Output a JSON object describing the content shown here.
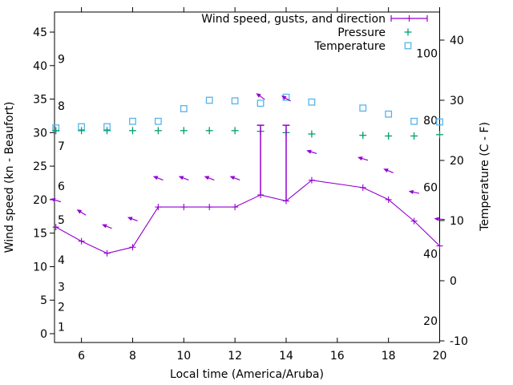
{
  "colors": {
    "wind": "#9400d3",
    "pressure": "#009e73",
    "temperature": "#56b4e9",
    "axis": "#000000",
    "background": "#ffffff"
  },
  "axes": {
    "x_title": "Local time (America/Aruba)",
    "left_title": "Wind speed (kn - Beaufort)",
    "right_title": "Temperature (C - F)",
    "x_tick_hours": [
      6,
      8,
      10,
      12,
      14,
      16,
      18,
      20
    ],
    "x_tick_labels": [
      "6",
      "8",
      "10",
      "12",
      "14",
      "16",
      "18",
      "20"
    ],
    "left_tick_kn": [
      0,
      5,
      10,
      15,
      20,
      25,
      30,
      35,
      40,
      45
    ],
    "left_tick_labels": [
      "0",
      "5",
      "10",
      "15",
      "20",
      "25",
      "30",
      "35",
      "40",
      "45"
    ],
    "beaufort_inner_labels": [
      {
        "label": "1",
        "kn": 1
      },
      {
        "label": "2",
        "kn": 4
      },
      {
        "label": "3",
        "kn": 7
      },
      {
        "label": "4",
        "kn": 11
      },
      {
        "label": "5",
        "kn": 17
      },
      {
        "label": "6",
        "kn": 22
      },
      {
        "label": "7",
        "kn": 28
      },
      {
        "label": "8",
        "kn": 34
      },
      {
        "label": "9",
        "kn": 41
      }
    ],
    "right_tick_c": [
      -10,
      0,
      10,
      20,
      30,
      40
    ],
    "right_tick_labels": [
      "-10",
      "0",
      "10",
      "20",
      "30",
      "40"
    ],
    "fahrenheit_inner_labels": [
      "20",
      "40",
      "60",
      "80",
      "100"
    ],
    "fahrenheit_inner_values": [
      20,
      40,
      60,
      80,
      100
    ]
  },
  "legend": [
    {
      "label": "Wind speed, gusts, and direction",
      "marker": "errorbar-line",
      "color": "#9400d3"
    },
    {
      "label": "Pressure",
      "marker": "plus",
      "color": "#009e73"
    },
    {
      "label": "Temperature",
      "marker": "open-square",
      "color": "#56b4e9"
    }
  ],
  "chart_data": {
    "type": "line",
    "title": "",
    "xlabel": "Local time (America/Aruba)",
    "ylabel_left": "Wind speed (kn - Beaufort)",
    "ylabel_right": "Temperature (C - F)",
    "x_range_hours": [
      4.95,
      20.2
    ],
    "left_axis_kn_range": [
      -1.3,
      48.1
    ],
    "right_axis_c_range": [
      -10.3,
      44.7
    ],
    "grid": false,
    "legend_position": "top-right-inside",
    "x_hours": [
      5,
      6,
      7,
      8,
      9,
      10,
      11,
      12,
      13,
      14,
      15,
      17,
      18,
      19,
      20
    ],
    "series": [
      {
        "name": "Wind speed, gusts, and direction",
        "color": "#9400d3",
        "wind_speed_kn": [
          15.9,
          13.8,
          12.0,
          12.9,
          18.9,
          18.9,
          18.9,
          18.9,
          20.7,
          19.8,
          22.9,
          21.8,
          20.0,
          16.8,
          13.1
        ],
        "gust_arrow_kn": [
          19.9,
          18.1,
          16.0,
          17.1,
          23.2,
          23.2,
          23.2,
          23.2,
          35.4,
          35.1,
          27.1,
          26.1,
          24.3,
          21.1,
          17.1
        ],
        "gust_bar_top_kn": [
          null,
          null,
          null,
          null,
          null,
          null,
          null,
          null,
          31.1,
          31.1,
          null,
          null,
          null,
          null,
          null
        ],
        "arrow_dir_deg": [
          163,
          148,
          158,
          160,
          160,
          160,
          160,
          160,
          144,
          150,
          163,
          163,
          158,
          168,
          175
        ]
      },
      {
        "name": "Pressure",
        "color": "#009e73",
        "values_left_scale": [
          30.3,
          30.3,
          30.3,
          30.3,
          30.3,
          30.3,
          30.3,
          30.3,
          30.2,
          30.0,
          29.8,
          29.6,
          29.5,
          29.5,
          29.7
        ]
      },
      {
        "name": "Temperature",
        "color": "#56b4e9",
        "values_c": [
          25.4,
          25.6,
          25.6,
          26.5,
          26.5,
          28.6,
          30.0,
          29.9,
          29.5,
          30.5,
          29.7,
          28.7,
          27.7,
          26.5,
          26.4
        ]
      }
    ]
  }
}
